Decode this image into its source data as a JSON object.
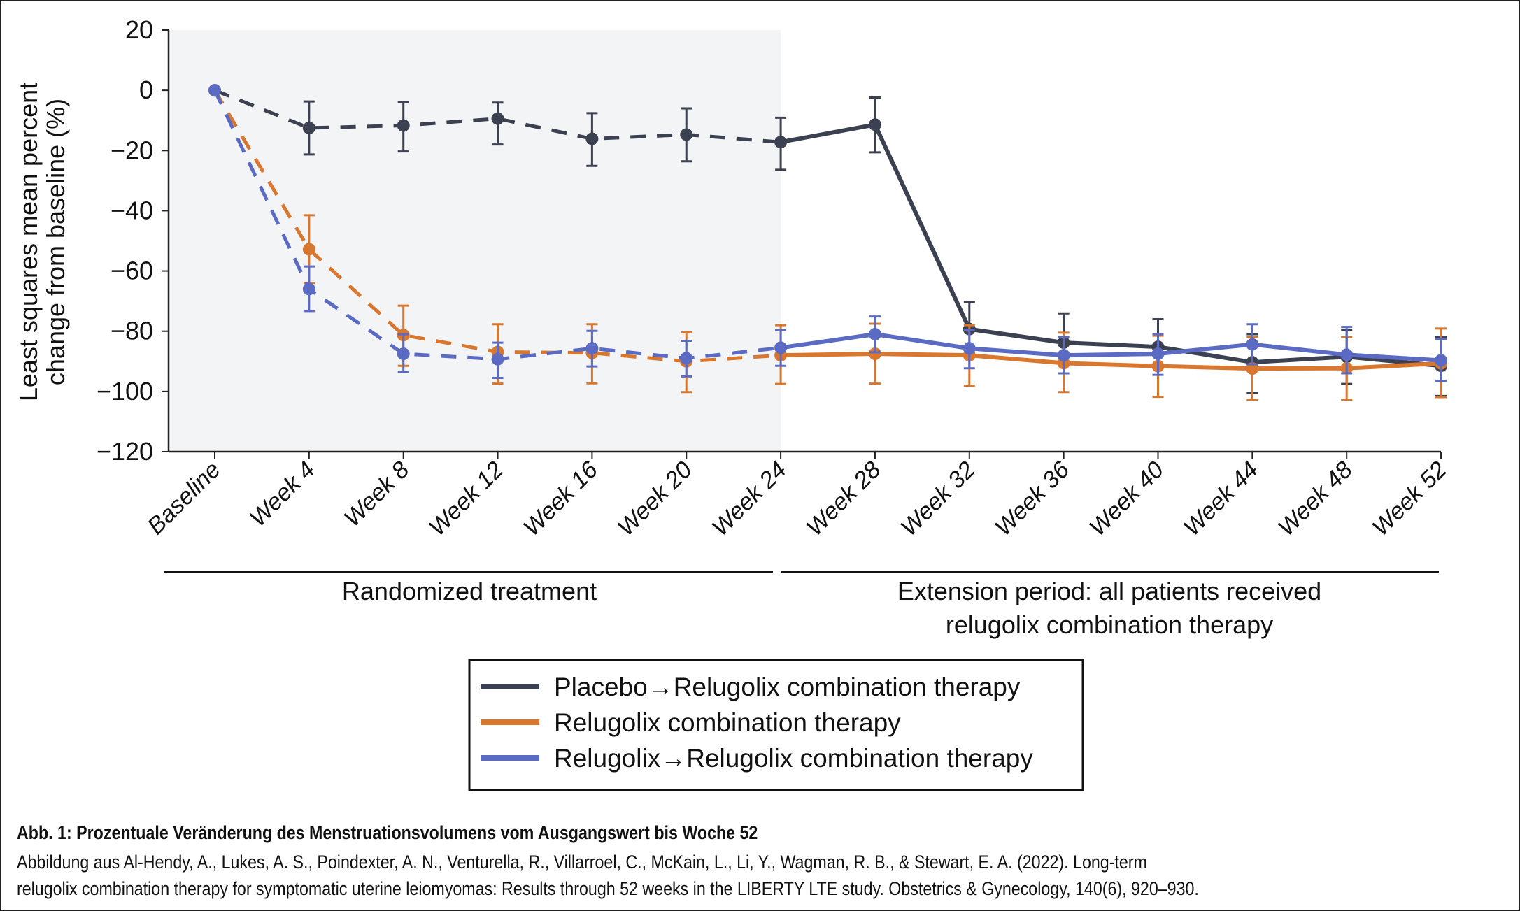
{
  "chart_data": {
    "type": "line",
    "title": "",
    "xlabel": "",
    "ylabel_lines": [
      "Least squares mean percent",
      "change from baseline (%)"
    ],
    "ylim": [
      -120,
      20
    ],
    "yticks": [
      20,
      0,
      -20,
      -40,
      -60,
      -80,
      -100,
      -120
    ],
    "ytick_labels": [
      "20",
      "0",
      "−20",
      "−40",
      "−60",
      "−80",
      "−100",
      "−120"
    ],
    "categories": [
      "Baseline",
      "Week 4",
      "Week 8",
      "Week 12",
      "Week 16",
      "Week 20",
      "Week 24",
      "Week 28",
      "Week 32",
      "Week 36",
      "Week 40",
      "Week 44",
      "Week 48",
      "Week 52"
    ],
    "shaded_region": {
      "from": "Baseline",
      "to": "Week 24",
      "label": "Randomized treatment"
    },
    "periods": [
      {
        "label_lines": [
          "Randomized treatment"
        ],
        "from": "Baseline",
        "to": "Week 24"
      },
      {
        "label_lines": [
          "Extension period: all patients received",
          "relugolix combination therapy"
        ],
        "from": "Week 24",
        "to": "Week 52"
      }
    ],
    "dashed_until_index": 6,
    "series": [
      {
        "name": "Placebo→Relugolix combination therapy",
        "color": "#3b4150",
        "dashed_until_index": 6,
        "values": [
          0,
          -12.5,
          -11.7,
          -9.4,
          -16.1,
          -14.7,
          -17.2,
          -11.4,
          -79.3,
          -83.8,
          -85.2,
          -90.3,
          -88.5,
          -91.5
        ],
        "err_low": [
          null,
          -21.3,
          -20.3,
          -18.0,
          -25.1,
          -23.6,
          -26.4,
          -20.6,
          null,
          null,
          null,
          -100.5,
          -97.5,
          -101.5
        ],
        "err_high": [
          null,
          -3.7,
          -3.9,
          -4.1,
          -7.6,
          -6.0,
          -9.1,
          -2.4,
          -70.4,
          -74.1,
          -76.0,
          -81.0,
          -79.5,
          -82.0
        ]
      },
      {
        "name": "Relugolix combination therapy",
        "color": "#d9772f",
        "dashed_until_index": 6,
        "values": [
          0,
          -52.8,
          -81.3,
          -86.9,
          -87.2,
          -90.0,
          -88.0,
          -87.5,
          -88.0,
          -90.6,
          -91.6,
          -92.4,
          -92.3,
          -90.7
        ],
        "err_low": [
          null,
          -64.0,
          -91.5,
          -97.4,
          -97.3,
          -100.2,
          -97.5,
          -97.4,
          -98.1,
          -100.2,
          -101.8,
          -102.7,
          -102.7,
          -101.9
        ],
        "err_high": [
          null,
          -41.5,
          -71.5,
          -77.7,
          -77.7,
          -80.4,
          -78.0,
          -77.5,
          -78.0,
          -80.5,
          -81.5,
          -82.0,
          -82.0,
          -79.1
        ]
      },
      {
        "name": "Relugolix→Relugolix combination therapy",
        "color": "#5b6bc4",
        "dashed_until_index": 6,
        "values": [
          0,
          -66.0,
          -87.5,
          -89.3,
          -85.7,
          -89.0,
          -85.5,
          -81.0,
          -85.7,
          -88.0,
          -87.5,
          -84.4,
          -87.8,
          -89.7
        ],
        "err_low": [
          null,
          -73.3,
          -93.5,
          -95.5,
          -91.7,
          -95.0,
          -91.5,
          -87.0,
          -92.3,
          -94.0,
          -94.5,
          -91.0,
          -94.0,
          -96.5
        ],
        "err_high": [
          null,
          -58.5,
          -81.0,
          -83.8,
          -79.9,
          -83.2,
          -79.7,
          -75.1,
          -79.5,
          -82.0,
          -81.0,
          -77.7,
          -78.6,
          -82.5
        ]
      }
    ],
    "legend": {
      "placement": "bottom-center",
      "entries": [
        {
          "label": "Placebo→Relugolix combination therapy",
          "color": "#3b4150"
        },
        {
          "label": "Relugolix combination therapy",
          "color": "#d9772f"
        },
        {
          "label": "Relugolix→Relugolix combination therapy",
          "color": "#5b6bc4"
        }
      ]
    },
    "grid": false
  },
  "caption": {
    "title": "Abb. 1: Prozentuale Veränderung des Menstruationsvolumens vom Ausgangswert bis Woche 52",
    "line1": "Abbildung aus Al-Hendy, A., Lukes, A. S., Poindexter, A. N., Venturella, R., Villarroel, C., McKain, L., Li, Y., Wagman, R. B., & Stewart, E. A. (2022). Long-term",
    "line2": "relugolix combination therapy for symptomatic uterine leiomyomas: Results through 52 weeks in the LIBERTY LTE study. Obstetrics & Gynecology, 140(6), 920–930."
  },
  "colors": {
    "shade": "#f3f4f6",
    "axis": "#222222"
  }
}
